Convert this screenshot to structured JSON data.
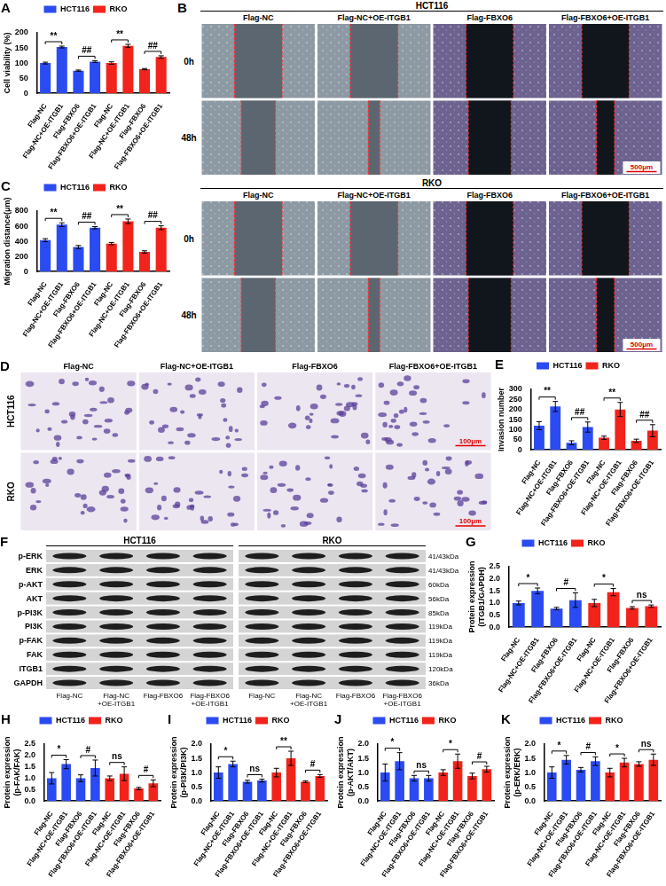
{
  "chart_data": [
    {
      "panel": "A",
      "type": "bar",
      "y_label": "Cell viability (%)",
      "grid": false,
      "legend": "top",
      "categories": [
        "Flag-NC",
        "Flag-NC+OE-ITGB1",
        "Flag-FBXO6",
        "Flag-FBXO6+OE-ITGB1",
        "Flag-NC",
        "Flag-NC+OE-ITGB1",
        "Flag-FBXO6",
        "Flag-FBXO6+OE-ITGB1"
      ],
      "series": [
        {
          "name": "HCT116",
          "color": "#2b4bf2",
          "values": [
            100,
            153,
            75,
            105,
            null,
            null,
            null,
            null
          ],
          "errors": [
            3,
            3,
            2,
            3,
            null,
            null,
            null,
            null
          ]
        },
        {
          "name": "RKO",
          "color": "#f2231b",
          "values": [
            null,
            null,
            null,
            null,
            100,
            157,
            80,
            120
          ],
          "errors": [
            null,
            null,
            null,
            null,
            4,
            5,
            2,
            4
          ]
        }
      ],
      "ylim": [
        0,
        200
      ],
      "yticks": [
        0,
        50,
        100,
        150,
        200
      ],
      "annotations": [
        {
          "text": "**",
          "between": [
            0,
            1
          ]
        },
        {
          "text": "##",
          "between": [
            2,
            3
          ]
        },
        {
          "text": "**",
          "between": [
            4,
            5
          ]
        },
        {
          "text": "##",
          "between": [
            6,
            7
          ]
        }
      ]
    },
    {
      "panel": "C",
      "type": "bar",
      "y_label": "Migration distance(μm)",
      "grid": false,
      "legend": "top",
      "categories": [
        "Flag-NC",
        "Flag-NC+OE-ITGB1",
        "Flag-FBXO6",
        "Flag-FBXO6+OE-ITGB1",
        "Flag-NC",
        "Flag-NC+OE-ITGB1",
        "Flag-FBXO6",
        "Flag-FBXO6+OE-ITGB1"
      ],
      "series": [
        {
          "name": "HCT116",
          "color": "#2b4bf2",
          "values": [
            415,
            620,
            325,
            580,
            null,
            null,
            null,
            null
          ],
          "errors": [
            20,
            25,
            20,
            15,
            null,
            null,
            null,
            null
          ]
        },
        {
          "name": "RKO",
          "color": "#f2231b",
          "values": [
            null,
            null,
            null,
            null,
            370,
            665,
            260,
            580
          ],
          "errors": [
            null,
            null,
            null,
            null,
            15,
            30,
            15,
            25
          ]
        }
      ],
      "ylim": [
        0,
        800
      ],
      "yticks": [
        0,
        200,
        400,
        600,
        800
      ],
      "annotations": [
        {
          "text": "**",
          "between": [
            0,
            1
          ]
        },
        {
          "text": "##",
          "between": [
            2,
            3
          ]
        },
        {
          "text": "**",
          "between": [
            4,
            5
          ]
        },
        {
          "text": "##",
          "between": [
            6,
            7
          ]
        }
      ]
    },
    {
      "panel": "E",
      "type": "bar",
      "y_label": "Invasion number",
      "grid": false,
      "legend": "top",
      "categories": [
        "Flag-NC",
        "Flag-NC+OE-ITGB1",
        "Flag-FBXO6",
        "Flag-FBXO6+OE-ITGB1",
        "Flag-NC",
        "Flag-NC+OE-ITGB1",
        "Flag-FBXO6",
        "Flag-FBXO6+OE-ITGB1"
      ],
      "series": [
        {
          "name": "HCT116",
          "color": "#2b4bf2",
          "values": [
            120,
            215,
            35,
            113,
            null,
            null,
            null,
            null
          ],
          "errors": [
            20,
            25,
            10,
            25,
            null,
            null,
            null,
            null
          ]
        },
        {
          "name": "RKO",
          "color": "#f2231b",
          "values": [
            null,
            null,
            null,
            null,
            60,
            200,
            45,
            95
          ],
          "errors": [
            null,
            null,
            null,
            null,
            8,
            35,
            8,
            30
          ]
        }
      ],
      "ylim": [
        0,
        300
      ],
      "yticks": [
        0,
        50,
        100,
        150,
        200,
        250,
        300
      ],
      "annotations": [
        {
          "text": "**",
          "between": [
            0,
            1
          ]
        },
        {
          "text": "##",
          "between": [
            2,
            3
          ]
        },
        {
          "text": "**",
          "between": [
            4,
            5
          ]
        },
        {
          "text": "##",
          "between": [
            6,
            7
          ]
        }
      ]
    },
    {
      "panel": "G",
      "type": "bar",
      "y_label": [
        "Protein expression",
        "(ITGB1/GAPDH)"
      ],
      "grid": false,
      "legend": "top",
      "categories": [
        "Flag-NC",
        "Flag-NC+OE-ITGB1",
        "Flag-FBXO6",
        "Flag-FBXO6+OE-ITGB1",
        "Flag-NC",
        "Flag-NC+OE-ITGB1",
        "Flag-FBXO6",
        "Flag-FBXO6+OE-ITGB1"
      ],
      "series": [
        {
          "name": "HCT116",
          "color": "#2b4bf2",
          "values": [
            1.0,
            1.5,
            0.77,
            1.12,
            null,
            null,
            null,
            null
          ],
          "errors": [
            0.08,
            0.12,
            0.05,
            0.3,
            null,
            null,
            null,
            null
          ]
        },
        {
          "name": "RKO",
          "color": "#f2231b",
          "values": [
            null,
            null,
            null,
            null,
            1.0,
            1.45,
            0.8,
            0.87
          ],
          "errors": [
            null,
            null,
            null,
            null,
            0.15,
            0.15,
            0.05,
            0.05
          ]
        }
      ],
      "ylim": [
        0,
        2.5
      ],
      "yticks": [
        {
          "value": 0,
          "label": "0.0"
        },
        0.5,
        {
          "value": 1,
          "label": "1.0"
        },
        1.5,
        {
          "value": 2,
          "label": "2.0"
        },
        2.5
      ],
      "annotations": [
        {
          "text": "*",
          "between": [
            0,
            1
          ]
        },
        {
          "text": "#",
          "between": [
            2,
            3
          ]
        },
        {
          "text": "*",
          "between": [
            4,
            5
          ]
        },
        {
          "text": "ns",
          "between": [
            6,
            7
          ]
        }
      ]
    },
    {
      "panel": "H",
      "type": "bar",
      "y_label": [
        "Protein expression",
        "(p-FAK/FAK)"
      ],
      "grid": false,
      "legend": "top",
      "categories": [
        "Flag-NC",
        "Flag-NC+OE-ITGB1",
        "Flag-FBXO6",
        "Flag-FBXO6+OE-ITGB1",
        "Flag-NC",
        "Flag-NC+OE-ITGB1",
        "Flag-FBXO6",
        "Flag-FBXO6+OE-ITGB1"
      ],
      "series": [
        {
          "name": "HCT116",
          "color": "#2b4bf2",
          "values": [
            1.0,
            1.62,
            1.0,
            1.45,
            null,
            null,
            null,
            null
          ],
          "errors": [
            0.25,
            0.2,
            0.15,
            0.35,
            null,
            null,
            null,
            null
          ]
        },
        {
          "name": "RKO",
          "color": "#f2231b",
          "values": [
            null,
            null,
            null,
            null,
            1.0,
            1.2,
            0.55,
            0.78
          ],
          "errors": [
            null,
            null,
            null,
            null,
            0.1,
            0.3,
            0.05,
            0.15
          ]
        }
      ],
      "ylim": [
        0,
        2.5
      ],
      "yticks": [
        {
          "value": 0,
          "label": "0.0"
        },
        0.5,
        {
          "value": 1,
          "label": "1.0"
        },
        1.5,
        {
          "value": 2,
          "label": "2.0"
        },
        2.5
      ],
      "annotations": [
        {
          "text": "*",
          "between": [
            0,
            1
          ]
        },
        {
          "text": "#",
          "between": [
            2,
            3
          ]
        },
        {
          "text": "ns",
          "between": [
            4,
            5
          ]
        },
        {
          "text": "#",
          "between": [
            6,
            7
          ]
        }
      ]
    },
    {
      "panel": "I",
      "type": "bar",
      "y_label": [
        "Protein expression",
        "(p-PI3K/PI3K)"
      ],
      "grid": false,
      "legend": "top",
      "categories": [
        "Flag-NC",
        "Flag-NC+OE-ITGB1",
        "Flag-FBXO6",
        "Flag-FBXO6+OE-ITGB1",
        "Flag-NC",
        "Flag-NC+OE-ITGB1",
        "Flag-FBXO6",
        "Flag-FBXO6+OE-ITGB1"
      ],
      "series": [
        {
          "name": "HCT116",
          "color": "#2b4bf2",
          "values": [
            1.0,
            1.3,
            0.68,
            0.72,
            null,
            null,
            null,
            null
          ],
          "errors": [
            0.2,
            0.1,
            0.05,
            0.05,
            null,
            null,
            null,
            null
          ]
        },
        {
          "name": "RKO",
          "color": "#f2231b",
          "values": [
            null,
            null,
            null,
            null,
            1.0,
            1.5,
            0.68,
            0.88
          ],
          "errors": [
            null,
            null,
            null,
            null,
            0.15,
            0.25,
            0.03,
            0.05
          ]
        }
      ],
      "ylim": [
        0,
        2
      ],
      "yticks": [
        {
          "value": 0,
          "label": "0.0"
        },
        0.5,
        {
          "value": 1,
          "label": "1.0"
        },
        1.5,
        {
          "value": 2,
          "label": "2.0"
        }
      ],
      "annotations": [
        {
          "text": "*",
          "between": [
            0,
            1
          ]
        },
        {
          "text": "ns",
          "between": [
            2,
            3
          ]
        },
        {
          "text": "**",
          "between": [
            4,
            5
          ]
        },
        {
          "text": "#",
          "between": [
            6,
            7
          ]
        }
      ]
    },
    {
      "panel": "J",
      "type": "bar",
      "y_label": [
        "Protein expression",
        "(p-AKT/AKT)"
      ],
      "grid": false,
      "legend": "top",
      "categories": [
        "Flag-NC",
        "Flag-NC+OE-ITGB1",
        "Flag-FBXO6",
        "Flag-FBXO6+OE-ITGB1",
        "Flag-NC",
        "Flag-NC+OE-ITGB1",
        "Flag-FBXO6",
        "Flag-FBXO6+OE-ITGB1"
      ],
      "series": [
        {
          "name": "HCT116",
          "color": "#2b4bf2",
          "values": [
            1.0,
            1.4,
            0.8,
            0.8,
            null,
            null,
            null,
            null
          ],
          "errors": [
            0.3,
            0.3,
            0.1,
            0.1,
            null,
            null,
            null,
            null
          ]
        },
        {
          "name": "RKO",
          "color": "#f2231b",
          "values": [
            null,
            null,
            null,
            null,
            1.0,
            1.4,
            0.88,
            1.12
          ],
          "errors": [
            null,
            null,
            null,
            null,
            0.1,
            0.25,
            0.1,
            0.1
          ]
        }
      ],
      "ylim": [
        0,
        2
      ],
      "yticks": [
        {
          "value": 0,
          "label": "0.0"
        },
        0.5,
        {
          "value": 1,
          "label": "1.0"
        },
        1.5,
        {
          "value": 2,
          "label": "2.0"
        }
      ],
      "annotations": [
        {
          "text": "*",
          "between": [
            0,
            1
          ]
        },
        {
          "text": "ns",
          "between": [
            2,
            3
          ]
        },
        {
          "text": "*",
          "between": [
            4,
            5
          ]
        },
        {
          "text": "#",
          "between": [
            6,
            7
          ]
        }
      ]
    },
    {
      "panel": "K",
      "type": "bar",
      "y_label": [
        "Protein expression",
        "(p-ERK/ERK)"
      ],
      "grid": false,
      "legend": "top",
      "categories": [
        "Flag-NC",
        "Flag-NC+OE-ITGB1",
        "Flag-FBXO6",
        "Flag-FBXO6+OE-ITGB1",
        "Flag-NC",
        "Flag-NC+OE-ITGB1",
        "Flag-FBXO6",
        "Flag-FBXO6+OE-ITGB1"
      ],
      "series": [
        {
          "name": "HCT116",
          "color": "#2b4bf2",
          "values": [
            1.0,
            1.45,
            1.1,
            1.4,
            null,
            null,
            null,
            null
          ],
          "errors": [
            0.2,
            0.15,
            0.08,
            0.15,
            null,
            null,
            null,
            null
          ]
        },
        {
          "name": "RKO",
          "color": "#f2231b",
          "values": [
            null,
            null,
            null,
            null,
            1.0,
            1.35,
            1.3,
            1.45
          ],
          "errors": [
            null,
            null,
            null,
            null,
            0.15,
            0.15,
            0.08,
            0.2
          ]
        }
      ],
      "ylim": [
        0,
        2
      ],
      "yticks": [
        {
          "value": 0,
          "label": "0.0"
        },
        0.5,
        {
          "value": 1,
          "label": "1.0"
        },
        1.5,
        {
          "value": 2,
          "label": "2.0"
        }
      ],
      "annotations": [
        {
          "text": "*",
          "between": [
            0,
            1
          ]
        },
        {
          "text": "#",
          "between": [
            2,
            3
          ]
        },
        {
          "text": "*",
          "between": [
            4,
            5
          ]
        },
        {
          "text": "ns",
          "between": [
            6,
            7
          ]
        }
      ]
    }
  ],
  "images": [
    {
      "type": "wound_healing",
      "panel": "B",
      "blocks": [
        {
          "title": "HCT116",
          "columns": [
            "Flag-NC",
            "Flag-NC+OE-ITGB1",
            "Flag-FBXO6",
            "Flag-FBXO6+OE-ITGB1"
          ],
          "rows": [
            "0h",
            "48h"
          ],
          "scale_bar": "500μm"
        },
        {
          "title": "RKO",
          "columns": [
            "Flag-NC",
            "Flag-NC+OE-ITGB1",
            "Flag-FBXO6",
            "Flag-FBXO6+OE-ITGB1"
          ],
          "rows": [
            "0h",
            "48h"
          ],
          "scale_bar": "500μm"
        }
      ]
    },
    {
      "type": "transwell",
      "panel": "D",
      "columns": [
        "Flag-NC",
        "Flag-NC+OE-ITGB1",
        "Flag-FBXO6",
        "Flag-FBXO6+OE-ITGB1"
      ],
      "rows": [
        "HCT116",
        "RKO"
      ],
      "scale_bar": "100μm"
    },
    {
      "type": "western_blot",
      "panel": "F",
      "groups": [
        "HCT116",
        "RKO"
      ],
      "lanes": [
        "Flag-NC",
        "Flag-NC+OE-ITGB1",
        "Flag-FBXO6",
        "Flag-FBXO6+OE-ITGB1"
      ],
      "bands": [
        {
          "name": "p-ERK",
          "size": "41/43kDa"
        },
        {
          "name": "ERK",
          "size": "41/43kDa"
        },
        {
          "name": "p-AKT",
          "size": "60kDa"
        },
        {
          "name": "AKT",
          "size": "56kDa"
        },
        {
          "name": "p-PI3K",
          "size": "85kDa"
        },
        {
          "name": "PI3K",
          "size": "119kDa"
        },
        {
          "name": "p-FAK",
          "size": "119kDa"
        },
        {
          "name": "FAK",
          "size": "119kDa"
        },
        {
          "name": "ITGB1",
          "size": "120kDa"
        },
        {
          "name": "GAPDH",
          "size": "36kDa"
        }
      ]
    }
  ]
}
